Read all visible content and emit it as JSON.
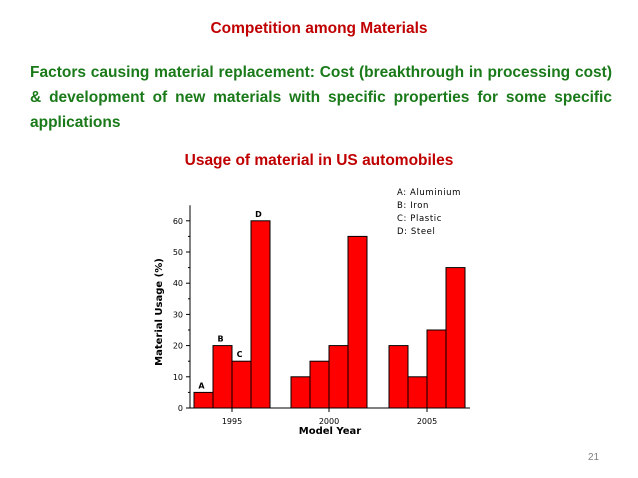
{
  "slide": {
    "title": "Competition among Materials",
    "factors_text": "Factors causing material replacement: Cost (breakthrough in processing cost) & development of new materials with specific properties for some specific applications",
    "chart_heading": "Usage of material in US automobiles",
    "page_number": "21"
  },
  "colors": {
    "title": "#c00000",
    "body_text": "#1a7a1a",
    "bar_fill": "#ff0000",
    "bar_edge": "#000000"
  },
  "chart_data": {
    "type": "bar",
    "title": "Usage of material in US automobiles",
    "xlabel": "Model Year",
    "ylabel": "Material Usage (%)",
    "ylim": [
      0,
      65
    ],
    "yticks": [
      0,
      10,
      20,
      30,
      40,
      50,
      60
    ],
    "categories": [
      "1995",
      "2000",
      "2005"
    ],
    "series": [
      {
        "name": "Aluminium",
        "label": "A",
        "values": [
          5,
          10,
          20
        ]
      },
      {
        "name": "Iron",
        "label": "B",
        "values": [
          20,
          15,
          10
        ]
      },
      {
        "name": "Plastic",
        "label": "C",
        "values": [
          15,
          20,
          25
        ]
      },
      {
        "name": "Steel",
        "label": "D",
        "values": [
          60,
          55,
          45
        ]
      }
    ],
    "bar_labels_shown_for": "1995",
    "legend": [
      "A: Aluminium",
      "B: Iron",
      "C: Plastic",
      "D: Steel"
    ],
    "legend_position": "top-right",
    "grid": false
  }
}
